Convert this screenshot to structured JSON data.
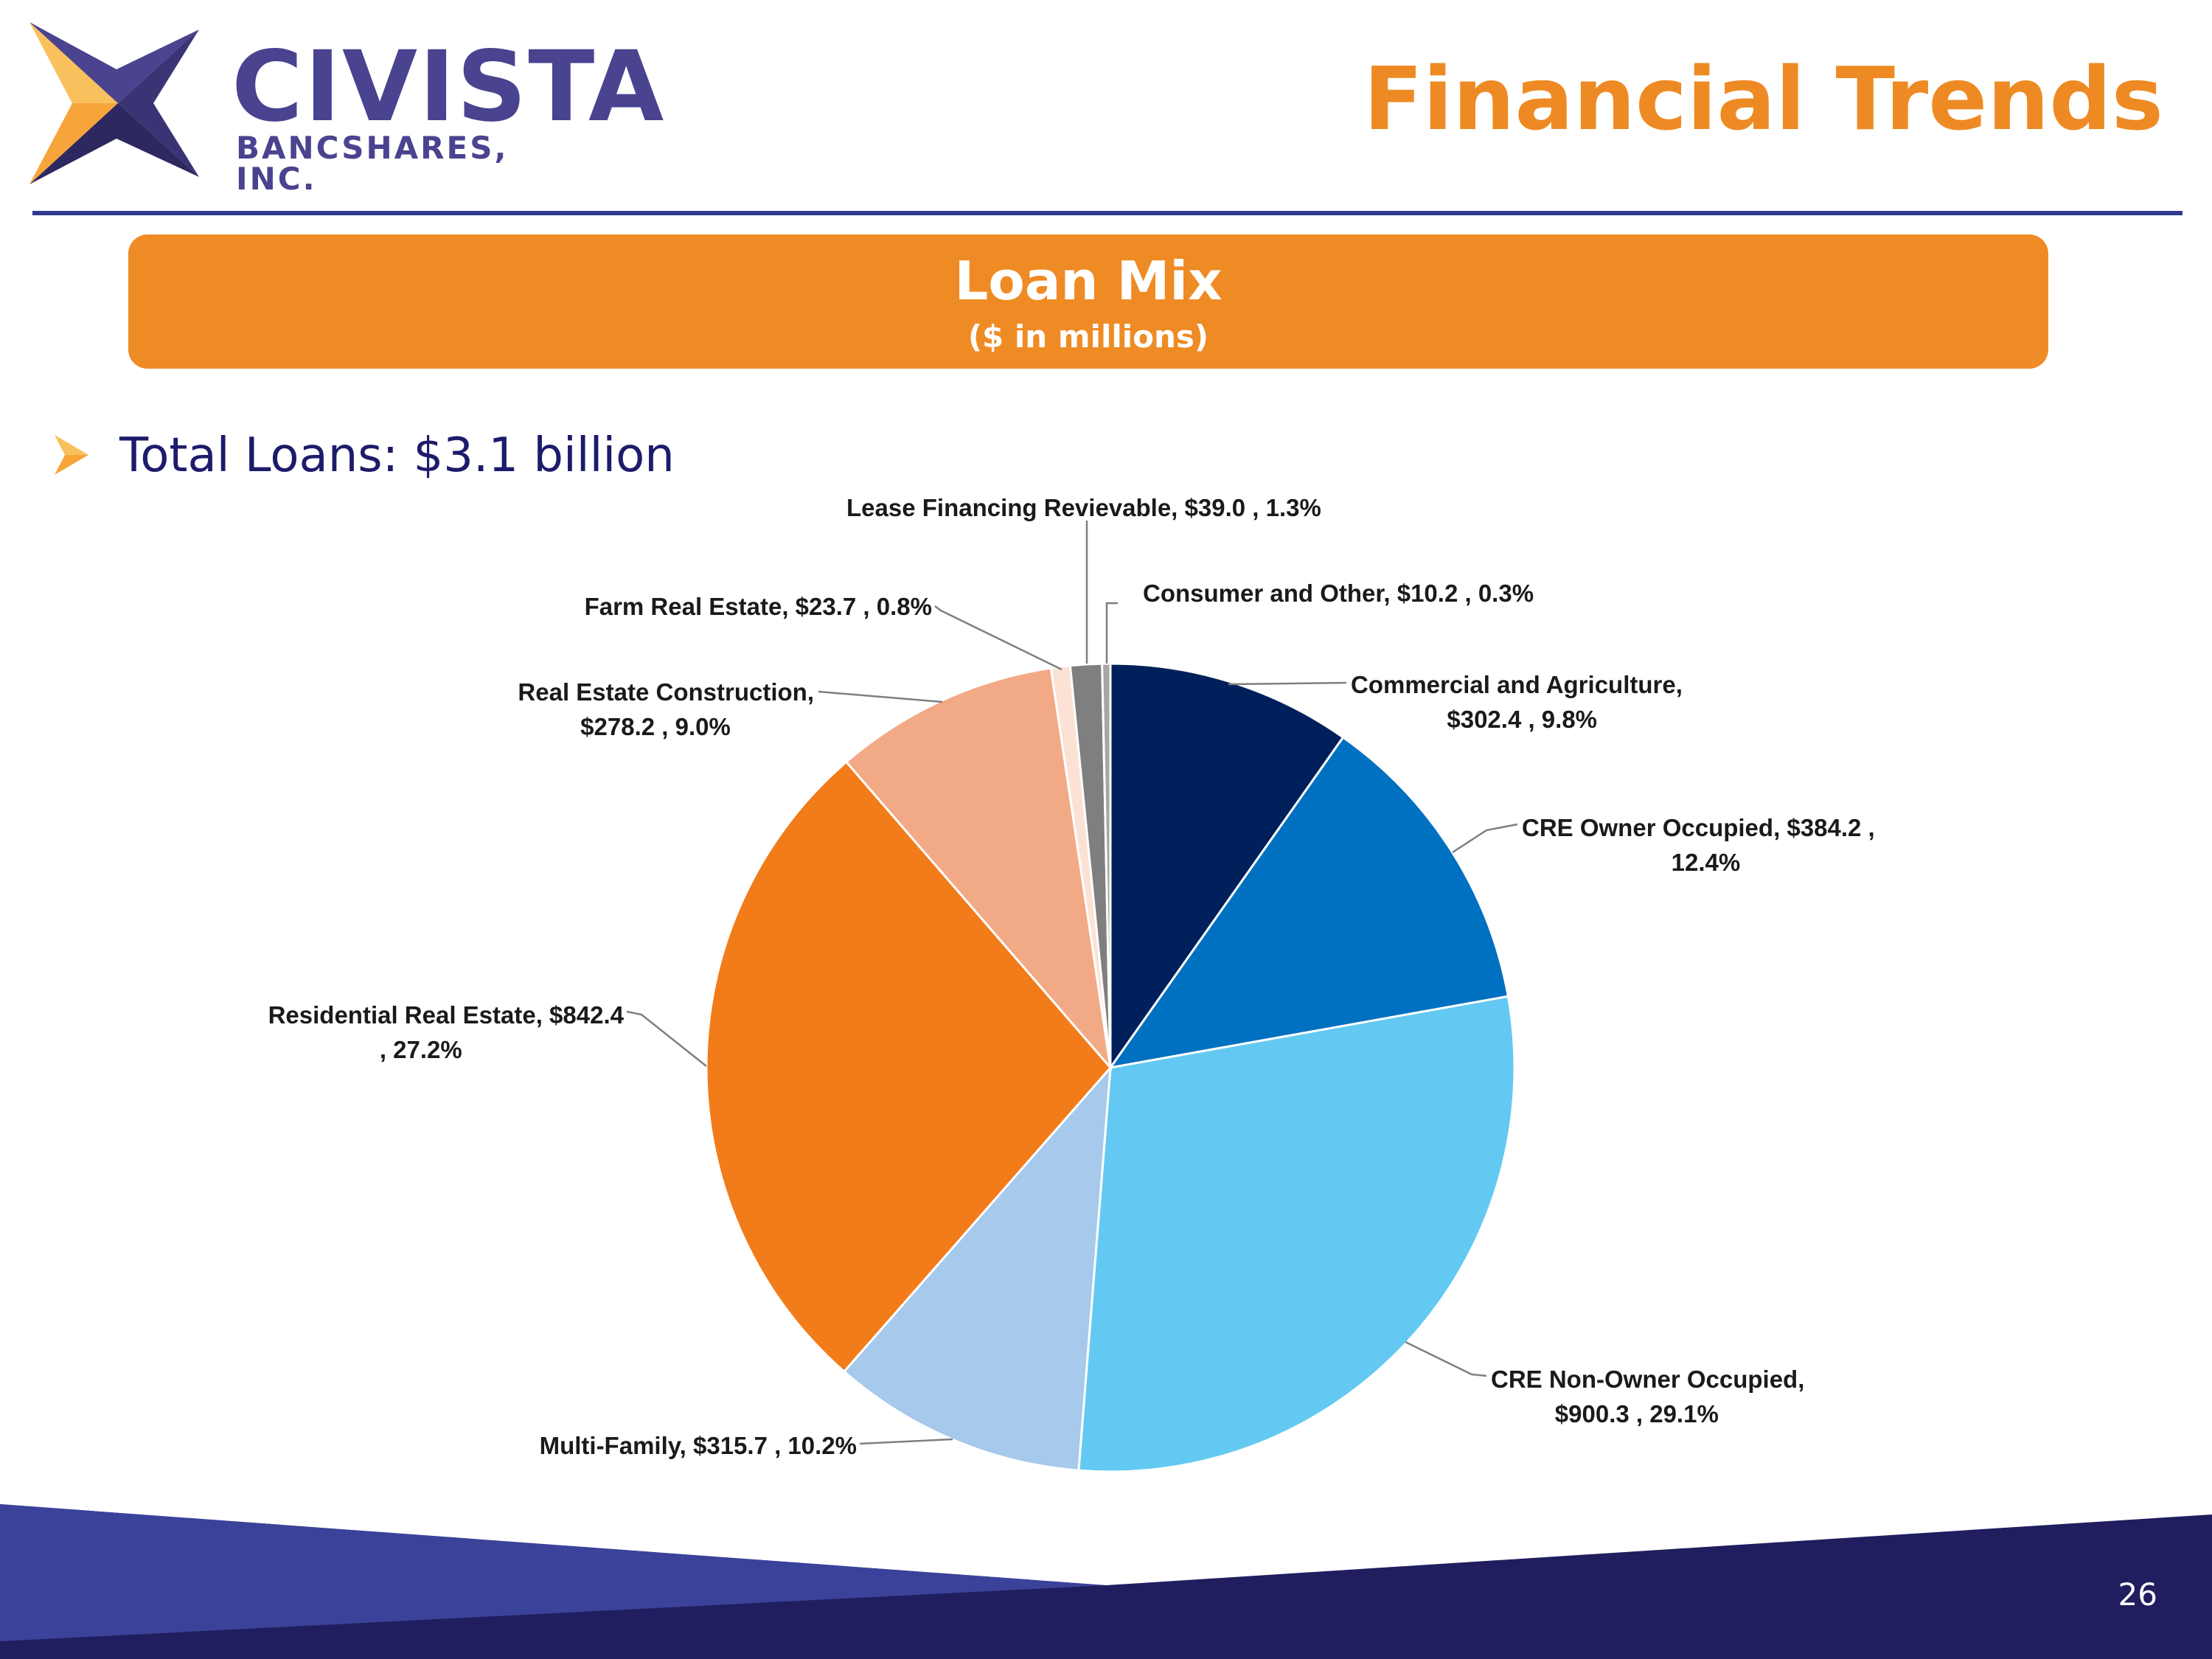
{
  "header": {
    "logo_name": "CIVISTA",
    "logo_sub": "BANCSHARES, INC.",
    "title": "Financial Trends"
  },
  "banner": {
    "title": "Loan Mix",
    "subtitle": "($ in millions)"
  },
  "summary": {
    "total_loans": "Total Loans: $3.1 billion"
  },
  "footer": {
    "page_number": "26"
  },
  "colors": {
    "brand_purple": "#4a438f",
    "accent_orange": "#ee8a23",
    "rule_blue": "#2f3a8f"
  },
  "chart_data": {
    "type": "pie",
    "title": "Loan Mix",
    "subtitle": "($ in millions)",
    "start": "12 o'clock",
    "direction": "clockwise",
    "slices": [
      {
        "label": "Commercial and Agriculture",
        "value": 302.4,
        "percent": 9.8,
        "color": "#00205b",
        "label_lines": [
          "Commercial and Agriculture,",
          "$302.4 , 9.8%"
        ]
      },
      {
        "label": "CRE Owner Occupied",
        "value": 384.2,
        "percent": 12.4,
        "color": "#0070c0",
        "label_lines": [
          "CRE Owner Occupied,  $384.2 ,",
          "12.4%"
        ]
      },
      {
        "label": "CRE Non-Owner Occupied",
        "value": 900.3,
        "percent": 29.1,
        "color": "#63c9f2",
        "label_lines": [
          "CRE Non-Owner Occupied,",
          "$900.3 , 29.1%"
        ]
      },
      {
        "label": "Multi-Family",
        "value": 315.7,
        "percent": 10.2,
        "color": "#a6c9ec",
        "label_lines": [
          "Multi-Family,  $315.7 , 10.2%"
        ]
      },
      {
        "label": "Residential Real Estate",
        "value": 842.4,
        "percent": 27.2,
        "color": "#f27b1a",
        "label_lines": [
          "Residential Real Estate,  $842.4",
          ", 27.2%"
        ]
      },
      {
        "label": "Real Estate Construction",
        "value": 278.2,
        "percent": 9.0,
        "color": "#f2aa86",
        "label_lines": [
          "Real Estate Construction,",
          "$278.2 , 9.0%"
        ]
      },
      {
        "label": "Farm Real Estate",
        "value": 23.7,
        "percent": 0.8,
        "color": "#fbe2d5",
        "label_lines": [
          "Farm Real Estate,  $23.7 , 0.8%"
        ]
      },
      {
        "label": "Lease Financing Revievable",
        "value": 39.0,
        "percent": 1.3,
        "color": "#7f7f7f",
        "label_lines": [
          "Lease Financing Revievable,  $39.0 , 1.3%"
        ]
      },
      {
        "label": "Consumer and Other",
        "value": 10.2,
        "percent": 0.3,
        "color": "#a6a6a6",
        "label_lines": [
          "Consumer and Other,  $10.2 , 0.3%"
        ]
      }
    ]
  }
}
